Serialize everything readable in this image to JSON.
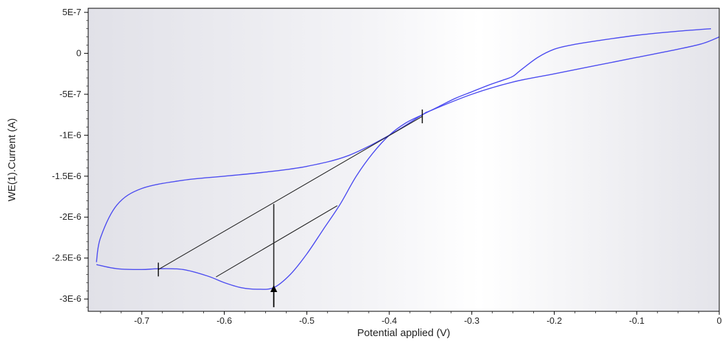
{
  "chart_data": {
    "type": "line",
    "title": "",
    "xlabel": "Potential applied (V)",
    "ylabel": "WE(1).Current (A)",
    "xlim": [
      -0.765,
      0.0
    ],
    "ylim": [
      -3.15e-06,
      5.5e-07
    ],
    "x_ticks": [
      -0.7,
      -0.6,
      -0.5,
      -0.4,
      -0.3,
      -0.2,
      -0.1,
      0
    ],
    "x_tick_labels": [
      "-0.7",
      "-0.6",
      "-0.5",
      "-0.4",
      "-0.3",
      "-0.2",
      "-0.1",
      "0"
    ],
    "y_ticks": [
      5e-07,
      0,
      -5e-07,
      -1e-06,
      -1.5e-06,
      -2e-06,
      -2.5e-06,
      -3e-06
    ],
    "y_tick_labels": [
      "5E-7",
      "0",
      "-5E-7",
      "-1E-6",
      "-1.5E-6",
      "-2E-6",
      "-2.5E-6",
      "-3E-6"
    ],
    "grid": false,
    "background": "gradient gray-white-gray",
    "colors": {
      "curve": "#4a4af0",
      "annotation": "#222222",
      "axis": "#000000"
    },
    "series": [
      {
        "x": [
          0.0,
          -0.02,
          -0.05,
          -0.1,
          -0.15,
          -0.2,
          -0.25,
          -0.3,
          -0.35,
          -0.36,
          -0.4,
          -0.45,
          -0.5,
          -0.55,
          -0.6,
          -0.65,
          -0.7,
          -0.73,
          -0.75,
          -0.755
        ],
        "y": [
          2e-07,
          1.2e-07,
          5e-08,
          -5e-08,
          -1.5e-07,
          -2.5e-07,
          -3.5e-07,
          -5e-07,
          -7e-07,
          -7.5e-07,
          -1e-06,
          -1.25e-06,
          -1.38e-06,
          -1.45e-06,
          -1.5e-06,
          -1.55e-06,
          -1.65e-06,
          -1.85e-06,
          -2.25e-06,
          -2.55e-06
        ]
      },
      {
        "x": [
          -0.755,
          -0.73,
          -0.7,
          -0.68,
          -0.65,
          -0.62,
          -0.6,
          -0.58,
          -0.56,
          -0.54,
          -0.52,
          -0.5,
          -0.48,
          -0.46,
          -0.44,
          -0.42,
          -0.4,
          -0.38,
          -0.36,
          -0.34,
          -0.32,
          -0.3,
          -0.28,
          -0.26,
          -0.25,
          -0.24,
          -0.22,
          -0.2,
          -0.18,
          -0.15,
          -0.1,
          -0.05,
          -0.01
        ],
        "y": [
          -2.58e-06,
          -2.63e-06,
          -2.64e-06,
          -2.63e-06,
          -2.64e-06,
          -2.72e-06,
          -2.8e-06,
          -2.86e-06,
          -2.88e-06,
          -2.86e-06,
          -2.7e-06,
          -2.45e-06,
          -2.15e-06,
          -1.85e-06,
          -1.5e-06,
          -1.22e-06,
          -1e-06,
          -8.5e-07,
          -7.5e-07,
          -6.5e-07,
          -5.5e-07,
          -4.7e-07,
          -3.9e-07,
          -3.2e-07,
          -2.8e-07,
          -2e-07,
          -5e-08,
          5e-08,
          1e-07,
          1.5e-07,
          2.2e-07,
          2.7e-07,
          3e-07
        ]
      }
    ],
    "annotations": {
      "baselines": [
        {
          "x1": -0.68,
          "y1": -2.64e-06,
          "x2": -0.36,
          "y2": -7.7e-07
        },
        {
          "x1": -0.61,
          "y1": -2.73e-06,
          "x2": -0.463,
          "y2": -1.86e-06
        }
      ],
      "peak_line": {
        "x": -0.54,
        "y_top": -1.84e-06,
        "y_bottom": -2.85e-06
      },
      "tick_marks": [
        {
          "x": -0.68,
          "y": -2.64e-06
        },
        {
          "x": -0.36,
          "y": -7.7e-07
        }
      ],
      "arrow": {
        "x": -0.54,
        "y_tip": -2.83e-06,
        "y_base": -3.1e-06
      }
    }
  }
}
